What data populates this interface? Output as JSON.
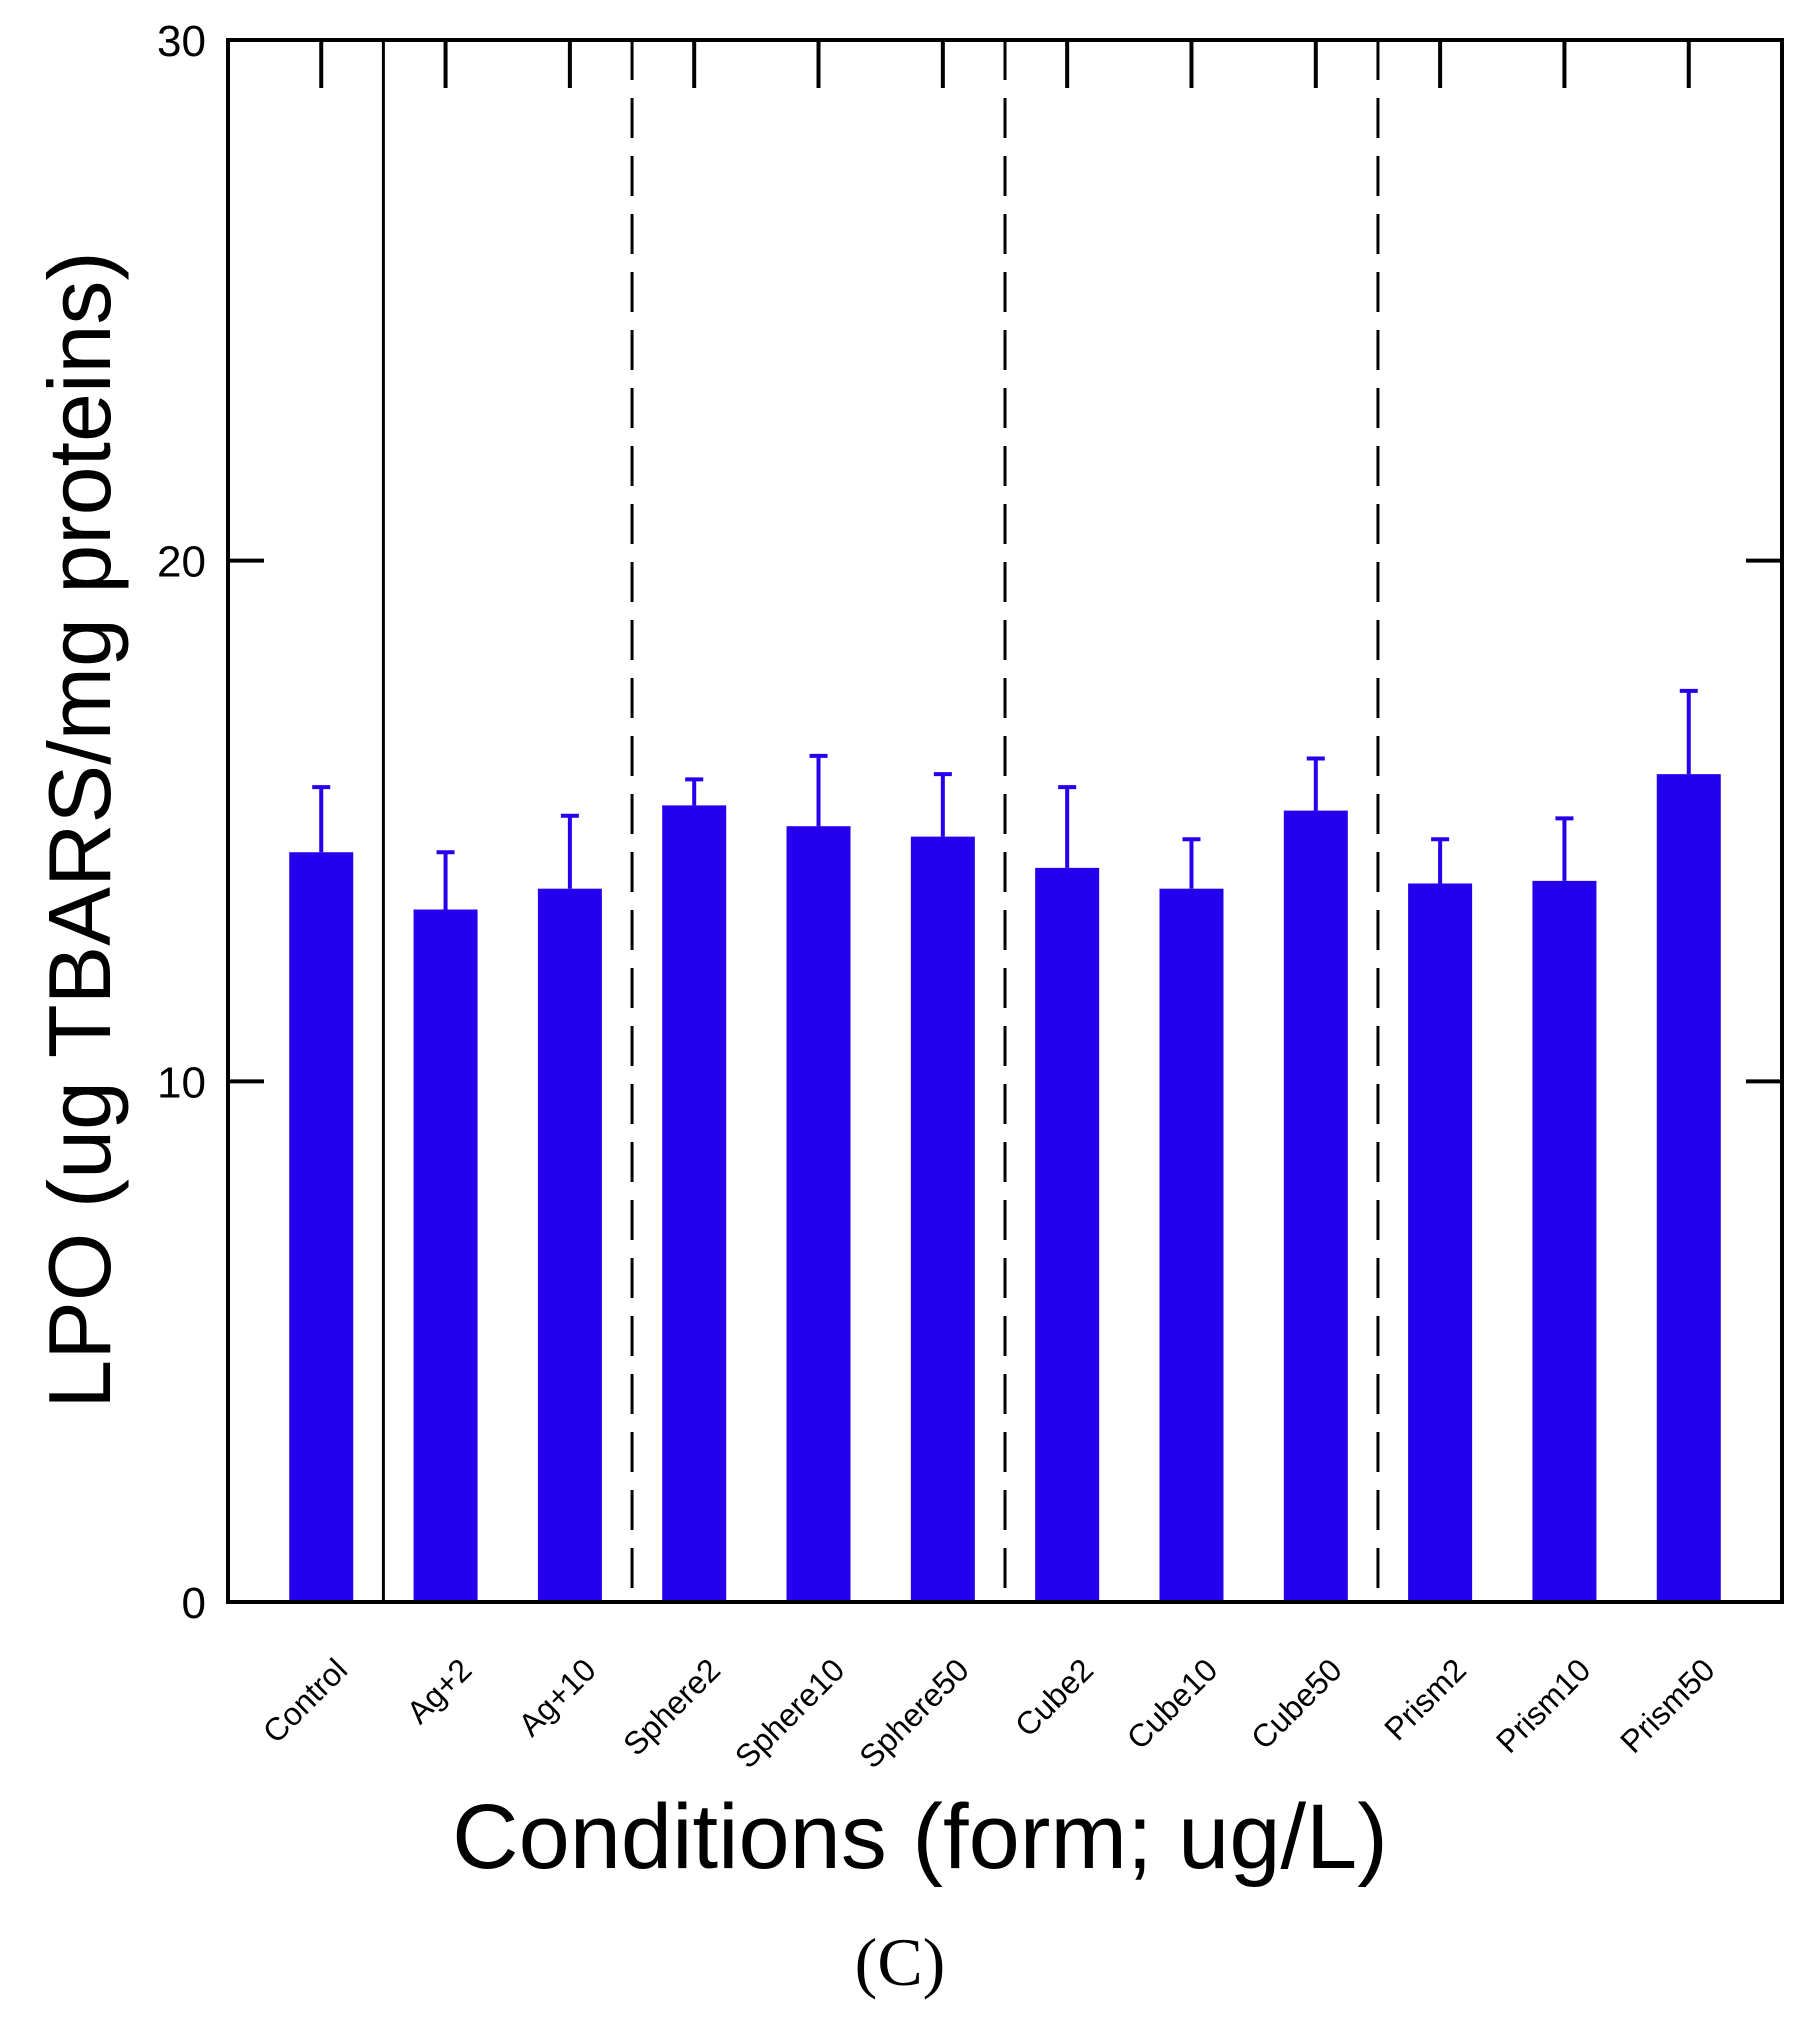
{
  "chart_data": {
    "type": "bar",
    "title": "",
    "xlabel": "Conditions (form; ug/L)",
    "ylabel": "LPO (ug TBARS/mg proteins)",
    "panel_label": "(C)",
    "ylim": [
      0,
      30
    ],
    "yticks": [
      0,
      10,
      20,
      30
    ],
    "categories": [
      "Control",
      "Ag+2",
      "Ag+10",
      "Sphere2",
      "Sphere10",
      "Sphere50",
      "Cube2",
      "Cube10",
      "Cube50",
      "Prism2",
      "Prism10",
      "Prism50"
    ],
    "values": [
      14.4,
      13.3,
      13.7,
      15.3,
      14.9,
      14.7,
      14.1,
      13.7,
      15.2,
      13.8,
      13.85,
      15.9
    ],
    "error_upper": [
      1.25,
      1.1,
      1.4,
      0.5,
      1.35,
      1.2,
      1.55,
      0.95,
      1.0,
      0.85,
      1.2,
      1.6
    ],
    "bar_color": "#2400ec",
    "axis_color": "#000000",
    "group_separators": [
      {
        "after_index": 0,
        "style": "solid"
      },
      {
        "after_index": 2,
        "style": "dashed"
      },
      {
        "after_index": 5,
        "style": "dashed"
      },
      {
        "after_index": 8,
        "style": "dashed"
      }
    ],
    "grid": false,
    "legend": "none"
  }
}
